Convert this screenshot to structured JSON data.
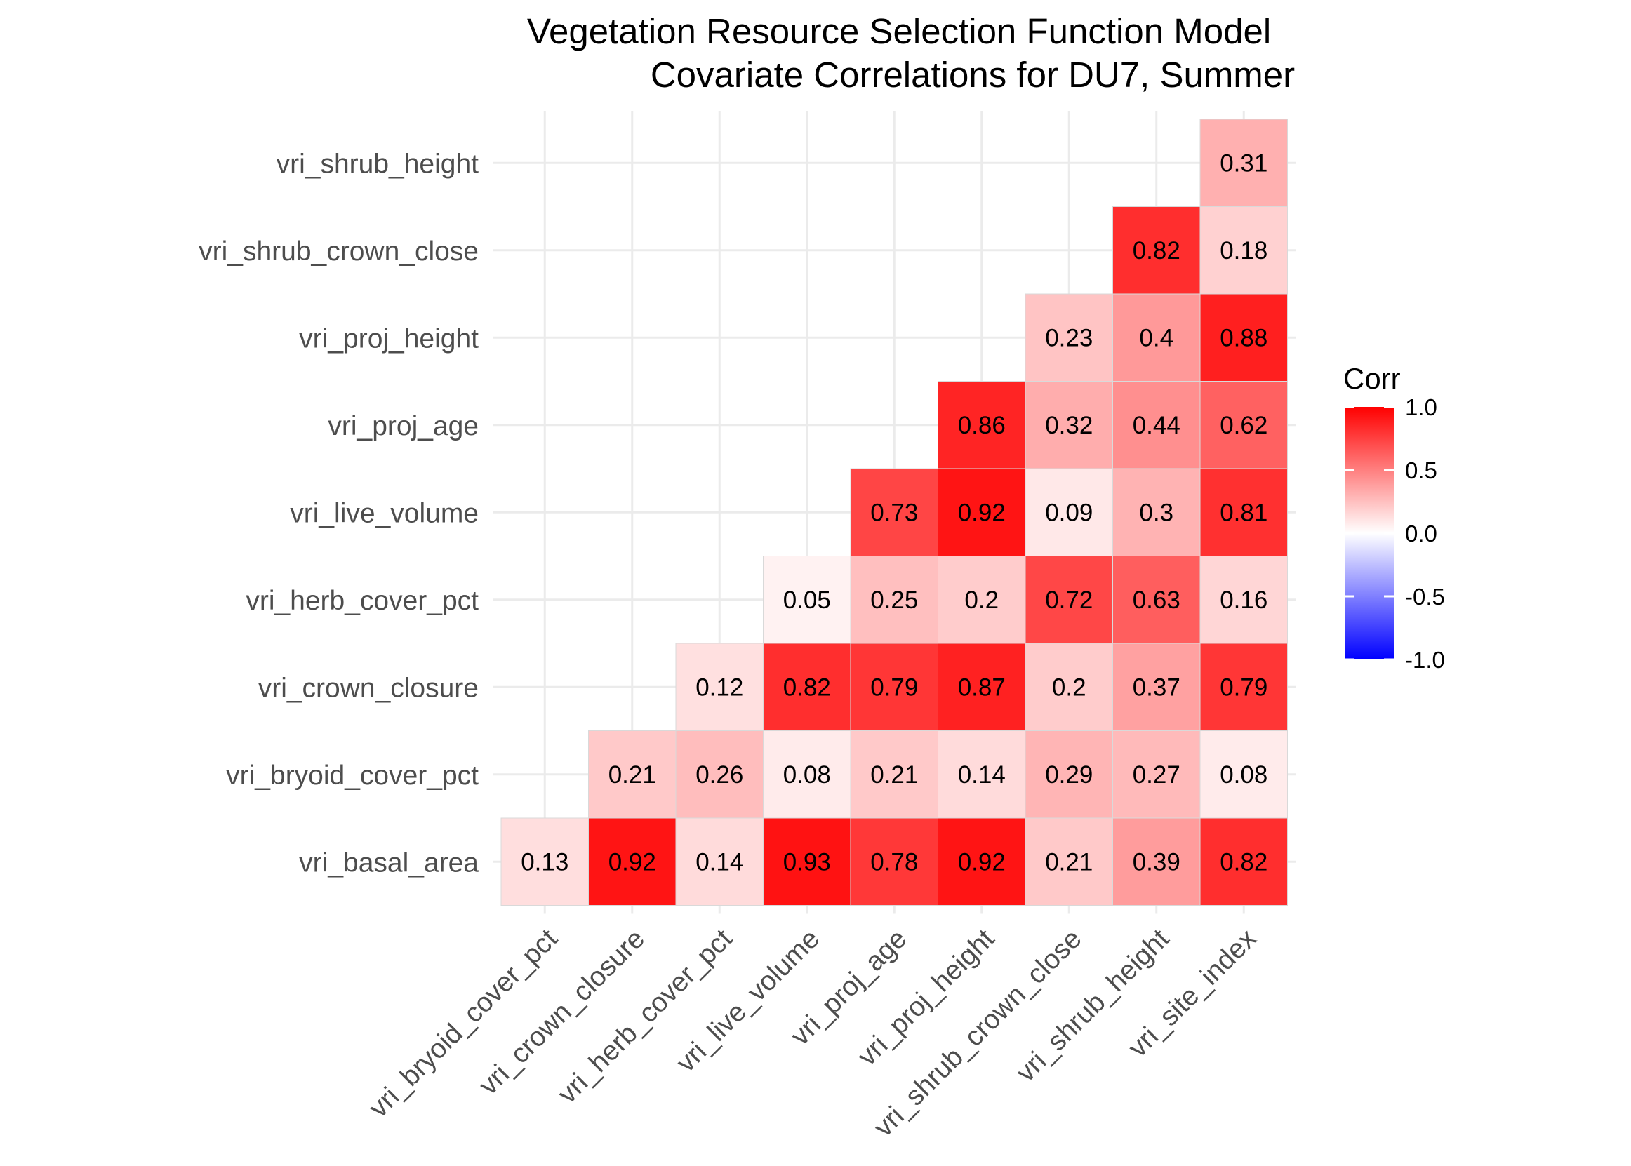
{
  "chart_data": {
    "type": "heatmap",
    "title": "Vegetation Resource Selection Function Model",
    "subtitle": "Covariate Correlations for DU7, Summer",
    "x_categories": [
      "vri_bryoid_cover_pct",
      "vri_crown_closure",
      "vri_herb_cover_pct",
      "vri_live_volume",
      "vri_proj_age",
      "vri_proj_height",
      "vri_shrub_crown_close",
      "vri_shrub_height",
      "vri_site_index"
    ],
    "y_categories": [
      "vri_basal_area",
      "vri_bryoid_cover_pct",
      "vri_crown_closure",
      "vri_herb_cover_pct",
      "vri_live_volume",
      "vri_proj_age",
      "vri_proj_height",
      "vri_shrub_crown_close",
      "vri_shrub_height"
    ],
    "cells": [
      {
        "x": "vri_bryoid_cover_pct",
        "y": "vri_basal_area",
        "value": 0.13,
        "label": "0.13"
      },
      {
        "x": "vri_crown_closure",
        "y": "vri_basal_area",
        "value": 0.92,
        "label": "0.92"
      },
      {
        "x": "vri_herb_cover_pct",
        "y": "vri_basal_area",
        "value": 0.14,
        "label": "0.14"
      },
      {
        "x": "vri_live_volume",
        "y": "vri_basal_area",
        "value": 0.93,
        "label": "0.93"
      },
      {
        "x": "vri_proj_age",
        "y": "vri_basal_area",
        "value": 0.78,
        "label": "0.78"
      },
      {
        "x": "vri_proj_height",
        "y": "vri_basal_area",
        "value": 0.92,
        "label": "0.92"
      },
      {
        "x": "vri_shrub_crown_close",
        "y": "vri_basal_area",
        "value": 0.21,
        "label": "0.21"
      },
      {
        "x": "vri_shrub_height",
        "y": "vri_basal_area",
        "value": 0.39,
        "label": "0.39"
      },
      {
        "x": "vri_site_index",
        "y": "vri_basal_area",
        "value": 0.82,
        "label": "0.82"
      },
      {
        "x": "vri_crown_closure",
        "y": "vri_bryoid_cover_pct",
        "value": 0.21,
        "label": "0.21"
      },
      {
        "x": "vri_herb_cover_pct",
        "y": "vri_bryoid_cover_pct",
        "value": 0.26,
        "label": "0.26"
      },
      {
        "x": "vri_live_volume",
        "y": "vri_bryoid_cover_pct",
        "value": 0.08,
        "label": "0.08"
      },
      {
        "x": "vri_proj_age",
        "y": "vri_bryoid_cover_pct",
        "value": 0.21,
        "label": "0.21"
      },
      {
        "x": "vri_proj_height",
        "y": "vri_bryoid_cover_pct",
        "value": 0.14,
        "label": "0.14"
      },
      {
        "x": "vri_shrub_crown_close",
        "y": "vri_bryoid_cover_pct",
        "value": 0.29,
        "label": "0.29"
      },
      {
        "x": "vri_shrub_height",
        "y": "vri_bryoid_cover_pct",
        "value": 0.27,
        "label": "0.27"
      },
      {
        "x": "vri_site_index",
        "y": "vri_bryoid_cover_pct",
        "value": 0.08,
        "label": "0.08"
      },
      {
        "x": "vri_herb_cover_pct",
        "y": "vri_crown_closure",
        "value": 0.12,
        "label": "0.12"
      },
      {
        "x": "vri_live_volume",
        "y": "vri_crown_closure",
        "value": 0.82,
        "label": "0.82"
      },
      {
        "x": "vri_proj_age",
        "y": "vri_crown_closure",
        "value": 0.79,
        "label": "0.79"
      },
      {
        "x": "vri_proj_height",
        "y": "vri_crown_closure",
        "value": 0.87,
        "label": "0.87"
      },
      {
        "x": "vri_shrub_crown_close",
        "y": "vri_crown_closure",
        "value": 0.2,
        "label": "0.2"
      },
      {
        "x": "vri_shrub_height",
        "y": "vri_crown_closure",
        "value": 0.37,
        "label": "0.37"
      },
      {
        "x": "vri_site_index",
        "y": "vri_crown_closure",
        "value": 0.79,
        "label": "0.79"
      },
      {
        "x": "vri_live_volume",
        "y": "vri_herb_cover_pct",
        "value": 0.05,
        "label": "0.05"
      },
      {
        "x": "vri_proj_age",
        "y": "vri_herb_cover_pct",
        "value": 0.25,
        "label": "0.25"
      },
      {
        "x": "vri_proj_height",
        "y": "vri_herb_cover_pct",
        "value": 0.2,
        "label": "0.2"
      },
      {
        "x": "vri_shrub_crown_close",
        "y": "vri_herb_cover_pct",
        "value": 0.72,
        "label": "0.72"
      },
      {
        "x": "vri_shrub_height",
        "y": "vri_herb_cover_pct",
        "value": 0.63,
        "label": "0.63"
      },
      {
        "x": "vri_site_index",
        "y": "vri_herb_cover_pct",
        "value": 0.16,
        "label": "0.16"
      },
      {
        "x": "vri_proj_age",
        "y": "vri_live_volume",
        "value": 0.73,
        "label": "0.73"
      },
      {
        "x": "vri_proj_height",
        "y": "vri_live_volume",
        "value": 0.92,
        "label": "0.92"
      },
      {
        "x": "vri_shrub_crown_close",
        "y": "vri_live_volume",
        "value": 0.09,
        "label": "0.09"
      },
      {
        "x": "vri_shrub_height",
        "y": "vri_live_volume",
        "value": 0.3,
        "label": "0.3"
      },
      {
        "x": "vri_site_index",
        "y": "vri_live_volume",
        "value": 0.81,
        "label": "0.81"
      },
      {
        "x": "vri_proj_height",
        "y": "vri_proj_age",
        "value": 0.86,
        "label": "0.86"
      },
      {
        "x": "vri_shrub_crown_close",
        "y": "vri_proj_age",
        "value": 0.32,
        "label": "0.32"
      },
      {
        "x": "vri_shrub_height",
        "y": "vri_proj_age",
        "value": 0.44,
        "label": "0.44"
      },
      {
        "x": "vri_site_index",
        "y": "vri_proj_age",
        "value": 0.62,
        "label": "0.62"
      },
      {
        "x": "vri_shrub_crown_close",
        "y": "vri_proj_height",
        "value": 0.23,
        "label": "0.23"
      },
      {
        "x": "vri_shrub_height",
        "y": "vri_proj_height",
        "value": 0.4,
        "label": "0.4"
      },
      {
        "x": "vri_site_index",
        "y": "vri_proj_height",
        "value": 0.88,
        "label": "0.88"
      },
      {
        "x": "vri_shrub_height",
        "y": "vri_shrub_crown_close",
        "value": 0.82,
        "label": "0.82"
      },
      {
        "x": "vri_site_index",
        "y": "vri_shrub_crown_close",
        "value": 0.18,
        "label": "0.18"
      },
      {
        "x": "vri_site_index",
        "y": "vri_shrub_height",
        "value": 0.31,
        "label": "0.31"
      }
    ],
    "legend": {
      "title": "Corr",
      "placement": "right",
      "range": [
        -1.0,
        1.0
      ],
      "ticks": [
        {
          "value": 1.0,
          "label": "1.0"
        },
        {
          "value": 0.5,
          "label": "0.5"
        },
        {
          "value": 0.0,
          "label": "0.0"
        },
        {
          "value": -0.5,
          "label": "-0.5"
        },
        {
          "value": -1.0,
          "label": "-1.0"
        }
      ],
      "colors": {
        "low": "#0000ff",
        "mid": "#ffffff",
        "high": "#ff0000"
      }
    },
    "grid": true
  }
}
